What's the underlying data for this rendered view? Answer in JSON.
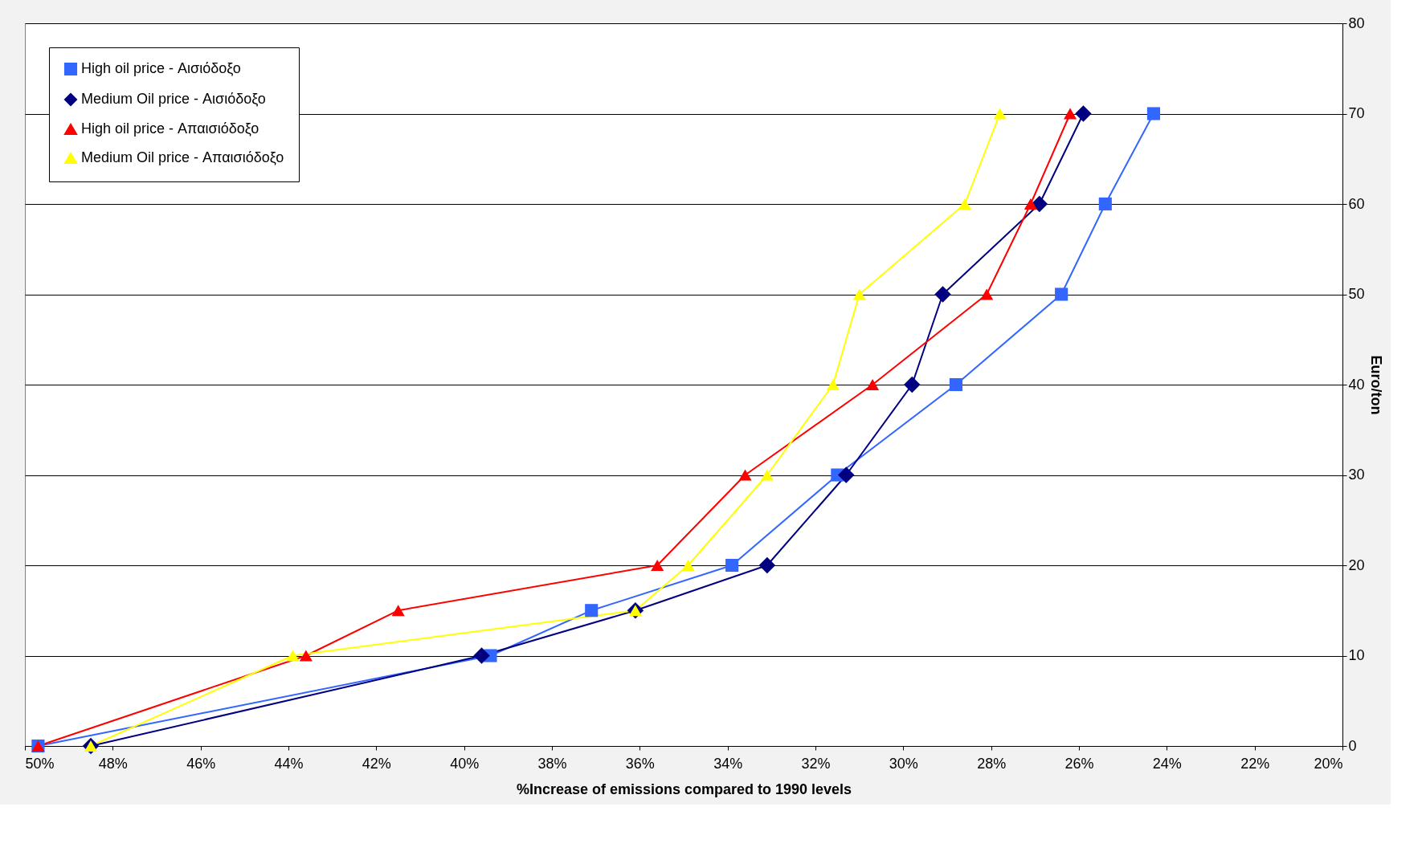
{
  "chart_data": {
    "type": "line",
    "xlabel": "%Increase of emissions compared to 1990 levels",
    "ylabel": "Euro/ton",
    "xlim": [
      50,
      20
    ],
    "xticks": [
      {
        "value": 50,
        "label": "50%"
      },
      {
        "value": 48,
        "label": "48%"
      },
      {
        "value": 46,
        "label": "46%"
      },
      {
        "value": 44,
        "label": "44%"
      },
      {
        "value": 42,
        "label": "42%"
      },
      {
        "value": 40,
        "label": "40%"
      },
      {
        "value": 38,
        "label": "38%"
      },
      {
        "value": 36,
        "label": "36%"
      },
      {
        "value": 34,
        "label": "34%"
      },
      {
        "value": 32,
        "label": "32%"
      },
      {
        "value": 30,
        "label": "30%"
      },
      {
        "value": 28,
        "label": "28%"
      },
      {
        "value": 26,
        "label": "26%"
      },
      {
        "value": 24,
        "label": "24%"
      },
      {
        "value": 22,
        "label": "22%"
      },
      {
        "value": 20,
        "label": "20%"
      }
    ],
    "ylim": [
      0,
      80
    ],
    "yticks": [
      0,
      10,
      20,
      30,
      40,
      50,
      60,
      70,
      80
    ],
    "grid": "y",
    "legend": "top left",
    "series": [
      {
        "name": "High oil price - Αισιόδοξο",
        "color": "#3366ff",
        "marker": "square",
        "x": [
          49.7,
          39.4,
          37.1,
          33.9,
          31.5,
          28.8,
          26.4,
          25.4,
          24.3
        ],
        "values": [
          0,
          10,
          15,
          20,
          30,
          40,
          50,
          60,
          70
        ]
      },
      {
        "name": "Medium Oil price - Αισιόδοξο",
        "color": "#000080",
        "marker": "diamond",
        "x": [
          48.5,
          39.6,
          36.1,
          33.1,
          31.3,
          29.8,
          29.1,
          26.9,
          25.9
        ],
        "values": [
          0,
          10,
          15,
          20,
          30,
          40,
          50,
          60,
          70
        ]
      },
      {
        "name": "High oil price - Απαισιόδοξο",
        "color": "#ff0000",
        "marker": "triangle",
        "x": [
          49.7,
          43.6,
          41.5,
          35.6,
          33.6,
          30.7,
          28.1,
          27.1,
          26.2
        ],
        "values": [
          0,
          10,
          15,
          20,
          30,
          40,
          50,
          60,
          70
        ]
      },
      {
        "name": "Medium Oil price - Απαισιόδοξο",
        "color": "#ffff00",
        "marker": "triangle",
        "x": [
          48.5,
          43.9,
          36.1,
          34.9,
          33.1,
          31.6,
          31.0,
          28.6,
          27.8
        ],
        "values": [
          0,
          10,
          15,
          20,
          30,
          40,
          50,
          60,
          70
        ]
      }
    ]
  }
}
